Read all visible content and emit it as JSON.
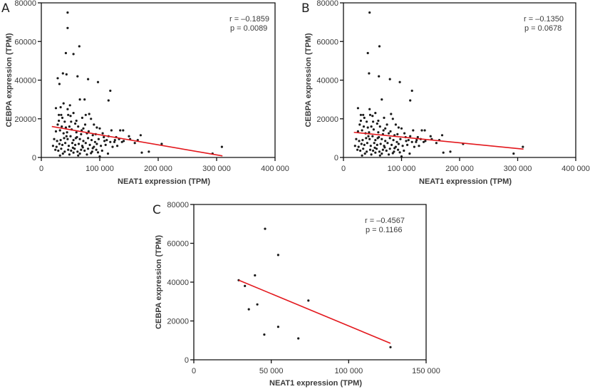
{
  "chart_data": [
    {
      "type": "scatter",
      "panel": "A",
      "title": "",
      "xlabel": "NEAT1 expression (TPM)",
      "ylabel": "CEBPA expression (TPM)",
      "xlim": [
        0,
        400000
      ],
      "ylim": [
        0,
        80000
      ],
      "xticks": [
        0,
        100000,
        200000,
        300000,
        400000
      ],
      "xtick_labels": [
        "0",
        "100 000",
        "200 000",
        "300 000",
        "400 000"
      ],
      "yticks": [
        0,
        20000,
        40000,
        60000,
        80000
      ],
      "ytick_labels": [
        "0",
        "20000",
        "40000",
        "60000",
        "80000"
      ],
      "annotation": {
        "r": "r = –0.1859",
        "p": "p = 0.0089"
      },
      "fit_line": {
        "x": [
          18000,
          310000
        ],
        "y": [
          16000,
          800
        ]
      },
      "points": [
        [
          45000,
          75000
        ],
        [
          45000,
          67000
        ],
        [
          65000,
          57500
        ],
        [
          42000,
          54000
        ],
        [
          55000,
          53500
        ],
        [
          37000,
          43500
        ],
        [
          43000,
          43000
        ],
        [
          28000,
          41000
        ],
        [
          62000,
          42000
        ],
        [
          80000,
          40500
        ],
        [
          97000,
          39000
        ],
        [
          31000,
          38000
        ],
        [
          118000,
          34500
        ],
        [
          115000,
          29500
        ],
        [
          66000,
          30000
        ],
        [
          74000,
          30000
        ],
        [
          38000,
          28000
        ],
        [
          25000,
          25500
        ],
        [
          33000,
          26000
        ],
        [
          45000,
          25000
        ],
        [
          30000,
          22000
        ],
        [
          34000,
          22000
        ],
        [
          46000,
          22000
        ],
        [
          50000,
          21500
        ],
        [
          70000,
          20500
        ],
        [
          82000,
          22500
        ],
        [
          85000,
          20000
        ],
        [
          55000,
          23000
        ],
        [
          30000,
          19000
        ],
        [
          40000,
          18500
        ],
        [
          51000,
          18500
        ],
        [
          58000,
          17500
        ],
        [
          75000,
          17000
        ],
        [
          90000,
          17000
        ],
        [
          95000,
          15500
        ],
        [
          28000,
          17000
        ],
        [
          35000,
          16000
        ],
        [
          42000,
          15500
        ],
        [
          48000,
          16000
        ],
        [
          63000,
          16000
        ],
        [
          72000,
          15000
        ],
        [
          100000,
          15000
        ],
        [
          120000,
          14000
        ],
        [
          135000,
          14000
        ],
        [
          140000,
          14000
        ],
        [
          170000,
          11500
        ],
        [
          25000,
          13500
        ],
        [
          32000,
          14000
        ],
        [
          38000,
          12500
        ],
        [
          44000,
          13000
        ],
        [
          52000,
          14500
        ],
        [
          60000,
          13000
        ],
        [
          68000,
          12000
        ],
        [
          78000,
          12500
        ],
        [
          88000,
          11500
        ],
        [
          105000,
          12500
        ],
        [
          115000,
          11000
        ],
        [
          128000,
          10500
        ],
        [
          150000,
          11000
        ],
        [
          165000,
          9000
        ],
        [
          22000,
          9500
        ],
        [
          27000,
          8500
        ],
        [
          33000,
          9000
        ],
        [
          39000,
          10000
        ],
        [
          45000,
          9500
        ],
        [
          50000,
          11000
        ],
        [
          55000,
          9000
        ],
        [
          61000,
          10500
        ],
        [
          66000,
          9500
        ],
        [
          72000,
          8500
        ],
        [
          80000,
          10000
        ],
        [
          86000,
          9000
        ],
        [
          92000,
          8000
        ],
        [
          98000,
          9500
        ],
        [
          108000,
          8500
        ],
        [
          112000,
          9000
        ],
        [
          125000,
          8000
        ],
        [
          133000,
          9500
        ],
        [
          138000,
          8000
        ],
        [
          160000,
          7500
        ],
        [
          206000,
          7000
        ],
        [
          309000,
          5500
        ],
        [
          20000,
          6000
        ],
        [
          26000,
          5500
        ],
        [
          31000,
          7000
        ],
        [
          36000,
          6500
        ],
        [
          41000,
          7500
        ],
        [
          47000,
          6000
        ],
        [
          53000,
          7500
        ],
        [
          58000,
          6500
        ],
        [
          64000,
          7000
        ],
        [
          70000,
          6000
        ],
        [
          76000,
          7500
        ],
        [
          83000,
          6500
        ],
        [
          90000,
          5500
        ],
        [
          95000,
          7000
        ],
        [
          102000,
          6000
        ],
        [
          110000,
          6500
        ],
        [
          122000,
          5500
        ],
        [
          130000,
          6000
        ],
        [
          24000,
          4000
        ],
        [
          29000,
          3500
        ],
        [
          34000,
          4500
        ],
        [
          40000,
          3000
        ],
        [
          46000,
          4000
        ],
        [
          51000,
          3500
        ],
        [
          57000,
          4500
        ],
        [
          62000,
          3000
        ],
        [
          68000,
          4000
        ],
        [
          74000,
          3500
        ],
        [
          80000,
          4500
        ],
        [
          87000,
          3000
        ],
        [
          94000,
          4000
        ],
        [
          104000,
          3500
        ],
        [
          114000,
          2000
        ],
        [
          172000,
          2500
        ],
        [
          184000,
          3000
        ],
        [
          293000,
          2000
        ],
        [
          32000,
          1000
        ],
        [
          48000,
          1500
        ],
        [
          63000,
          1000
        ],
        [
          78000,
          1500
        ],
        [
          100000,
          500
        ],
        [
          37000,
          2000
        ],
        [
          55000,
          2500
        ],
        [
          66000,
          2000
        ],
        [
          85000,
          2200
        ],
        [
          43000,
          11000
        ],
        [
          59000,
          10000
        ],
        [
          69000,
          14000
        ],
        [
          81000,
          13500
        ],
        [
          93000,
          12000
        ],
        [
          107000,
          10500
        ],
        [
          118000,
          8000
        ],
        [
          126000,
          9000
        ],
        [
          141000,
          8500
        ],
        [
          152000,
          9500
        ],
        [
          54000,
          5000
        ],
        [
          71000,
          5200
        ],
        [
          88000,
          4800
        ],
        [
          97000,
          2600
        ],
        [
          60000,
          19000
        ],
        [
          36000,
          20500
        ],
        [
          76000,
          22000
        ],
        [
          49000,
          27000
        ]
      ]
    },
    {
      "type": "scatter",
      "panel": "B",
      "title": "",
      "xlabel": "NEAT1 expression (TPM)",
      "ylabel": "CEBPA expression (TPM)",
      "xlim": [
        0,
        400000
      ],
      "ylim": [
        0,
        80000
      ],
      "xticks": [
        0,
        100000,
        200000,
        300000,
        400000
      ],
      "xtick_labels": [
        "0",
        "100 000",
        "200 000",
        "300 000",
        "400 000"
      ],
      "yticks": [
        0,
        20000,
        40000,
        60000,
        80000
      ],
      "ytick_labels": [
        "0",
        "20000",
        "40000",
        "60000",
        "80000"
      ],
      "annotation": {
        "r": "r = –0.1350",
        "p": "p = 0.0678"
      },
      "fit_line": {
        "x": [
          18000,
          310000
        ],
        "y": [
          13000,
          4300
        ]
      },
      "points": [
        [
          45000,
          75000
        ],
        [
          62000,
          57500
        ],
        [
          42000,
          54000
        ],
        [
          44000,
          43500
        ],
        [
          61000,
          42000
        ],
        [
          80000,
          40500
        ],
        [
          97000,
          39000
        ],
        [
          118000,
          34500
        ],
        [
          115000,
          29500
        ],
        [
          66000,
          30000
        ],
        [
          25000,
          25500
        ],
        [
          45000,
          25000
        ],
        [
          30000,
          22000
        ],
        [
          34000,
          22000
        ],
        [
          46000,
          22000
        ],
        [
          50000,
          21500
        ],
        [
          70000,
          20500
        ],
        [
          82000,
          22500
        ],
        [
          85000,
          20000
        ],
        [
          55000,
          23000
        ],
        [
          30000,
          19000
        ],
        [
          40000,
          18500
        ],
        [
          51000,
          18500
        ],
        [
          58000,
          17500
        ],
        [
          75000,
          17000
        ],
        [
          90000,
          17000
        ],
        [
          95000,
          15500
        ],
        [
          28000,
          17000
        ],
        [
          35000,
          16000
        ],
        [
          42000,
          15500
        ],
        [
          48000,
          16000
        ],
        [
          63000,
          16000
        ],
        [
          72000,
          15000
        ],
        [
          100000,
          15000
        ],
        [
          120000,
          14000
        ],
        [
          135000,
          14000
        ],
        [
          140000,
          14000
        ],
        [
          170000,
          11500
        ],
        [
          25000,
          13500
        ],
        [
          32000,
          14000
        ],
        [
          38000,
          12500
        ],
        [
          44000,
          13000
        ],
        [
          52000,
          14500
        ],
        [
          60000,
          13000
        ],
        [
          68000,
          12000
        ],
        [
          78000,
          12500
        ],
        [
          88000,
          11500
        ],
        [
          105000,
          12500
        ],
        [
          115000,
          11000
        ],
        [
          128000,
          10500
        ],
        [
          150000,
          11000
        ],
        [
          165000,
          9000
        ],
        [
          22000,
          9500
        ],
        [
          27000,
          8500
        ],
        [
          33000,
          9000
        ],
        [
          39000,
          10000
        ],
        [
          45000,
          9500
        ],
        [
          50000,
          11000
        ],
        [
          55000,
          9000
        ],
        [
          61000,
          10500
        ],
        [
          66000,
          9500
        ],
        [
          72000,
          8500
        ],
        [
          80000,
          10000
        ],
        [
          86000,
          9000
        ],
        [
          92000,
          8000
        ],
        [
          98000,
          9500
        ],
        [
          108000,
          8500
        ],
        [
          112000,
          9000
        ],
        [
          125000,
          8000
        ],
        [
          133000,
          9500
        ],
        [
          138000,
          8000
        ],
        [
          160000,
          7500
        ],
        [
          206000,
          7000
        ],
        [
          309000,
          5500
        ],
        [
          20000,
          6000
        ],
        [
          26000,
          5500
        ],
        [
          31000,
          7000
        ],
        [
          36000,
          6500
        ],
        [
          41000,
          7500
        ],
        [
          47000,
          6000
        ],
        [
          53000,
          7500
        ],
        [
          58000,
          6500
        ],
        [
          64000,
          7000
        ],
        [
          70000,
          6000
        ],
        [
          76000,
          7500
        ],
        [
          83000,
          6500
        ],
        [
          90000,
          5500
        ],
        [
          95000,
          7000
        ],
        [
          102000,
          6000
        ],
        [
          110000,
          6500
        ],
        [
          122000,
          5500
        ],
        [
          130000,
          6000
        ],
        [
          24000,
          4000
        ],
        [
          29000,
          3500
        ],
        [
          34000,
          4500
        ],
        [
          40000,
          3000
        ],
        [
          46000,
          4000
        ],
        [
          51000,
          3500
        ],
        [
          57000,
          4500
        ],
        [
          62000,
          3000
        ],
        [
          68000,
          4000
        ],
        [
          74000,
          3500
        ],
        [
          80000,
          4500
        ],
        [
          87000,
          3000
        ],
        [
          94000,
          4000
        ],
        [
          104000,
          3500
        ],
        [
          114000,
          2000
        ],
        [
          172000,
          2500
        ],
        [
          184000,
          3000
        ],
        [
          293000,
          2000
        ],
        [
          32000,
          1000
        ],
        [
          48000,
          1500
        ],
        [
          63000,
          1000
        ],
        [
          78000,
          1500
        ],
        [
          100000,
          500
        ],
        [
          37000,
          2000
        ],
        [
          55000,
          2500
        ],
        [
          66000,
          2000
        ],
        [
          85000,
          2200
        ],
        [
          43000,
          11000
        ],
        [
          59000,
          10000
        ],
        [
          69000,
          14000
        ],
        [
          81000,
          13500
        ],
        [
          93000,
          12000
        ],
        [
          107000,
          10500
        ],
        [
          118000,
          8000
        ],
        [
          126000,
          9000
        ],
        [
          141000,
          8500
        ],
        [
          152000,
          9500
        ],
        [
          54000,
          5000
        ],
        [
          71000,
          5200
        ],
        [
          88000,
          4800
        ],
        [
          97000,
          2600
        ],
        [
          60000,
          19000
        ],
        [
          36000,
          20500
        ]
      ]
    },
    {
      "type": "scatter",
      "panel": "C",
      "title": "",
      "xlabel": "NEAT1 expression (TPM)",
      "ylabel": "CEBPA expression (TPM)",
      "xlim": [
        0,
        150000
      ],
      "ylim": [
        0,
        80000
      ],
      "xticks": [
        0,
        50000,
        100000,
        150000
      ],
      "xtick_labels": [
        "0",
        "50 000",
        "100 000",
        "150 000"
      ],
      "yticks": [
        0,
        20000,
        40000,
        60000,
        80000
      ],
      "ytick_labels": [
        "0",
        "20000",
        "40000",
        "60000",
        "80000"
      ],
      "annotation": {
        "r": "r = –0.4567",
        "p": "p = 0.1166"
      },
      "fit_line": {
        "x": [
          29000,
          127000
        ],
        "y": [
          41000,
          8500
        ]
      },
      "points": [
        [
          46000,
          67500
        ],
        [
          54500,
          54000
        ],
        [
          39500,
          43500
        ],
        [
          29000,
          41000
        ],
        [
          33000,
          38000
        ],
        [
          74000,
          30500
        ],
        [
          41000,
          28500
        ],
        [
          35500,
          26000
        ],
        [
          54500,
          17000
        ],
        [
          45500,
          13000
        ],
        [
          67500,
          11000
        ],
        [
          127000,
          6500
        ]
      ]
    }
  ]
}
